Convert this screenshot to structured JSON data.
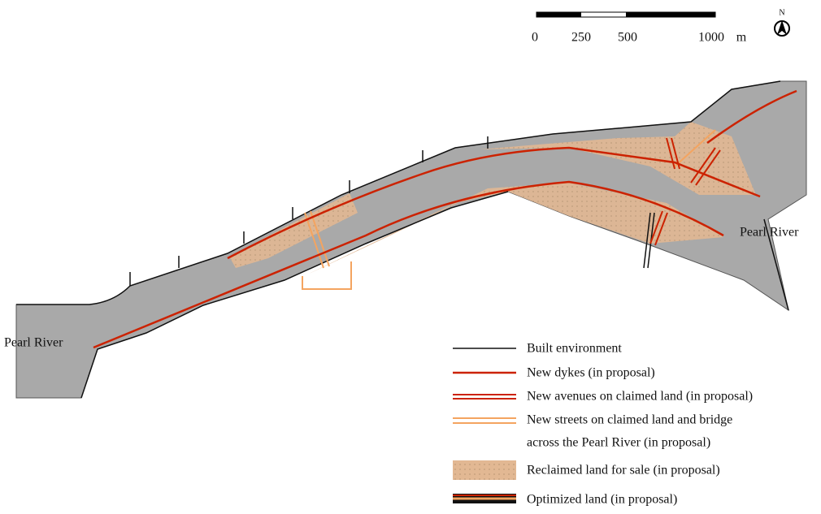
{
  "scale_bar": {
    "labels": [
      "0",
      "250",
      "500",
      "1000"
    ],
    "unit": "m"
  },
  "north": "N",
  "place_labels": [
    "Pearl River",
    "Pearl River"
  ],
  "legend": [
    "Built  environment",
    "New dykes (in proposal)",
    "New avenues on claimed land (in proposal)",
    "New streets on claimed land and bridge",
    "across the Pearl River  (in proposal)",
    "Reclaimed land for sale (in proposal)",
    "Optimized land (in proposal)"
  ]
}
